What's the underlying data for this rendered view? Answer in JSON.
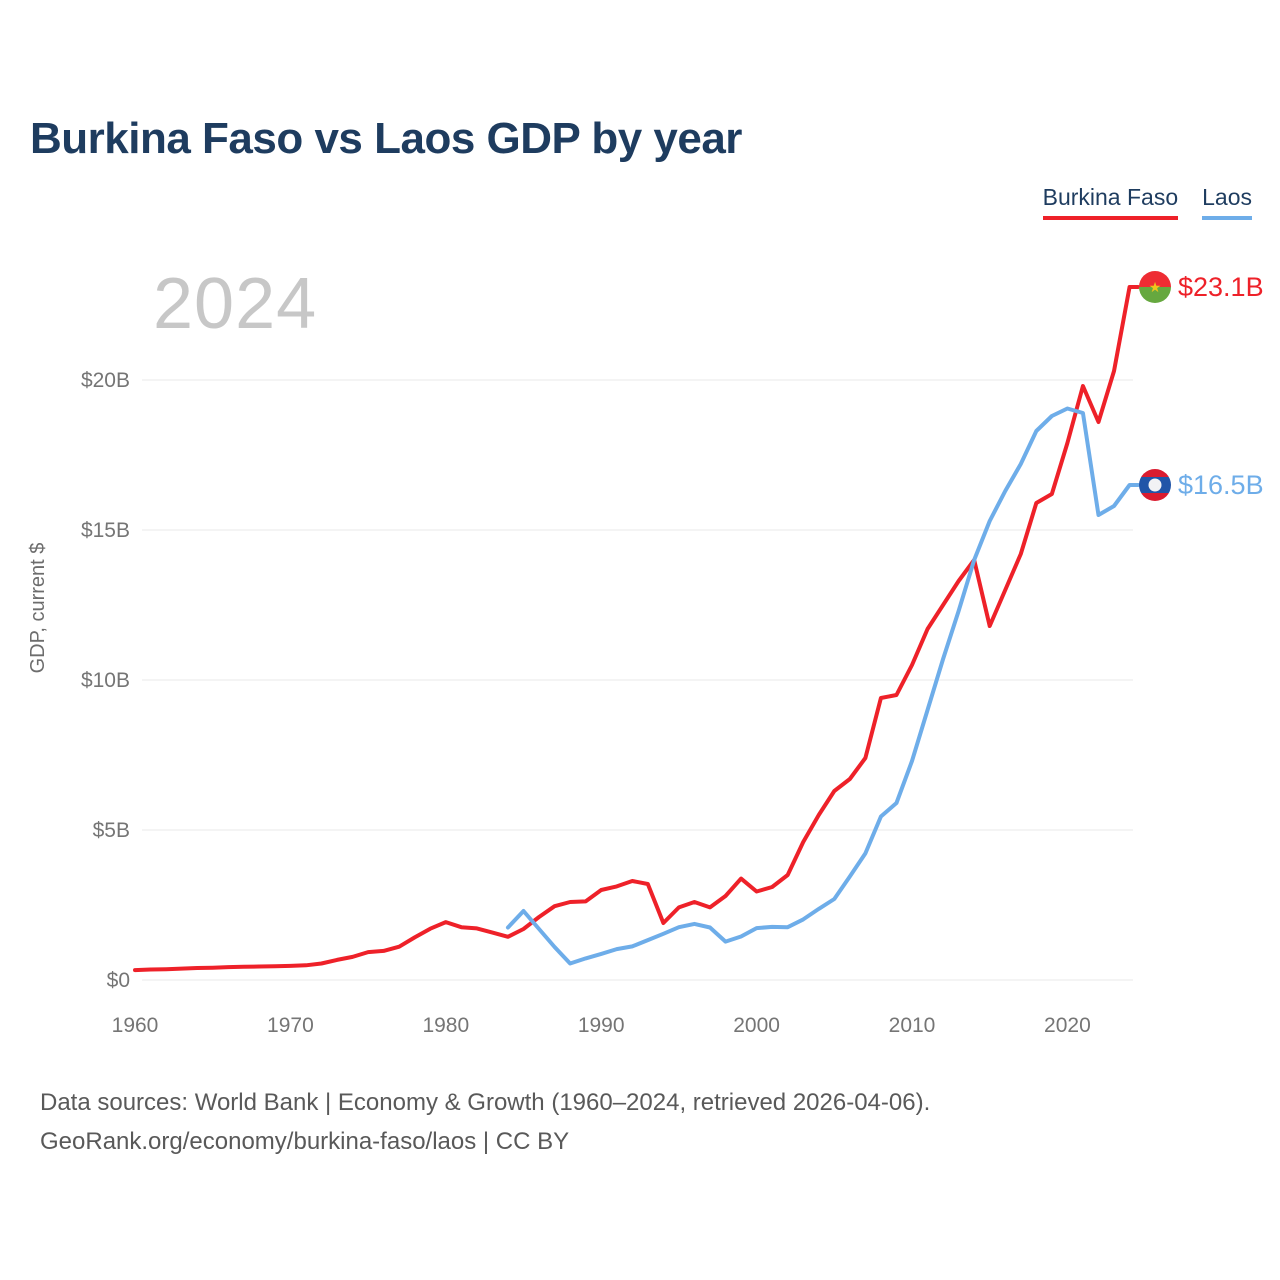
{
  "title": "Burkina Faso vs Laos GDP by year",
  "watermark": "2024",
  "legend": [
    {
      "label": "Burkina Faso",
      "color": "#ee2129"
    },
    {
      "label": "Laos",
      "color": "#6eade9"
    }
  ],
  "end_labels": [
    {
      "series": "Burkina Faso",
      "value": "$23.1B"
    },
    {
      "series": "Laos",
      "value": "$16.5B"
    }
  ],
  "footer": {
    "line1": "Data sources: World Bank | Economy & Growth (1960–2024, retrieved 2026-04-06).",
    "line2": "GeoRank.org/economy/burkina-faso/laos | CC BY"
  },
  "colors": {
    "title_text": "#1e3c5f",
    "axis_text": "#757575",
    "gridline": "#e9e9e9",
    "watermark": "#c7c7c7",
    "burkina_faso_line": "#ee2129",
    "laos_line": "#6eade9"
  },
  "chart_data": {
    "type": "line",
    "title": "Burkina Faso vs Laos GDP by year",
    "xlabel": "",
    "ylabel": "GDP, current $",
    "xlim": [
      1960,
      2024
    ],
    "ylim": [
      0,
      23.5
    ],
    "x_ticks": [
      1960,
      1970,
      1980,
      1990,
      2000,
      2010,
      2020
    ],
    "y_ticks": [
      {
        "value": 0,
        "label": "$0"
      },
      {
        "value": 5,
        "label": "$5B"
      },
      {
        "value": 10,
        "label": "$10B"
      },
      {
        "value": 15,
        "label": "$15B"
      },
      {
        "value": 20,
        "label": "$20B"
      }
    ],
    "grid": "horizontal",
    "legend_position": "top-right",
    "unit": "billions of current US$",
    "series": [
      {
        "name": "Burkina Faso",
        "color": "#ee2129",
        "end_label": "$23.1B",
        "years": [
          1960,
          1961,
          1962,
          1963,
          1964,
          1965,
          1966,
          1967,
          1968,
          1969,
          1970,
          1971,
          1972,
          1973,
          1974,
          1975,
          1976,
          1977,
          1978,
          1979,
          1980,
          1981,
          1982,
          1983,
          1984,
          1985,
          1986,
          1987,
          1988,
          1989,
          1990,
          1991,
          1992,
          1993,
          1994,
          1995,
          1996,
          1997,
          1998,
          1999,
          2000,
          2001,
          2002,
          2003,
          2004,
          2005,
          2006,
          2007,
          2008,
          2009,
          2010,
          2011,
          2012,
          2013,
          2014,
          2015,
          2016,
          2017,
          2018,
          2019,
          2020,
          2021,
          2022,
          2023,
          2024
        ],
        "values": [
          0.33,
          0.35,
          0.36,
          0.38,
          0.4,
          0.41,
          0.43,
          0.44,
          0.45,
          0.46,
          0.47,
          0.49,
          0.55,
          0.67,
          0.77,
          0.93,
          0.97,
          1.11,
          1.42,
          1.71,
          1.93,
          1.76,
          1.72,
          1.58,
          1.44,
          1.7,
          2.1,
          2.46,
          2.6,
          2.62,
          3.0,
          3.12,
          3.3,
          3.2,
          1.9,
          2.42,
          2.6,
          2.42,
          2.8,
          3.38,
          2.95,
          3.1,
          3.5,
          4.6,
          5.5,
          6.3,
          6.7,
          7.4,
          9.4,
          9.5,
          10.5,
          11.7,
          12.5,
          13.3,
          14.0,
          11.8,
          13.0,
          14.2,
          15.9,
          16.2,
          17.9,
          19.8,
          18.6,
          20.3,
          23.1
        ]
      },
      {
        "name": "Laos",
        "color": "#6eade9",
        "end_label": "$16.5B",
        "years": [
          1984,
          1985,
          1986,
          1987,
          1988,
          1989,
          1990,
          1991,
          1992,
          1993,
          1994,
          1995,
          1996,
          1997,
          1998,
          1999,
          2000,
          2001,
          2002,
          2003,
          2004,
          2005,
          2006,
          2007,
          2008,
          2009,
          2010,
          2011,
          2012,
          2013,
          2014,
          2015,
          2016,
          2017,
          2018,
          2019,
          2020,
          2021,
          2022,
          2023,
          2024
        ],
        "values": [
          1.75,
          2.3,
          1.7,
          1.1,
          0.55,
          0.72,
          0.87,
          1.03,
          1.12,
          1.33,
          1.54,
          1.76,
          1.87,
          1.75,
          1.28,
          1.45,
          1.73,
          1.77,
          1.76,
          2.02,
          2.37,
          2.7,
          3.45,
          4.22,
          5.45,
          5.9,
          7.3,
          9.0,
          10.7,
          12.3,
          14.0,
          15.3,
          16.3,
          17.2,
          18.3,
          18.8,
          19.05,
          18.9,
          15.5,
          15.8,
          16.5
        ]
      }
    ]
  }
}
